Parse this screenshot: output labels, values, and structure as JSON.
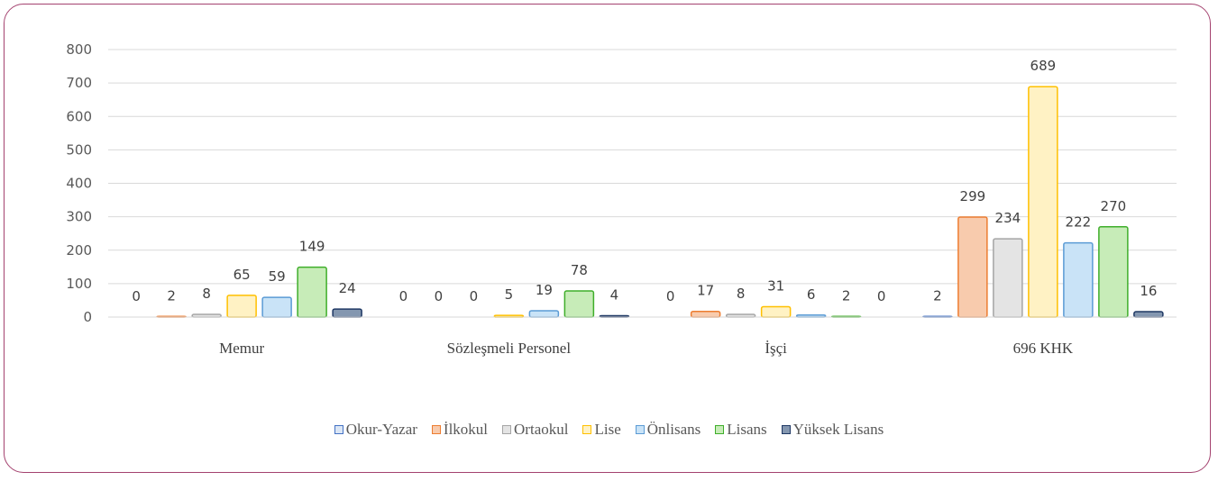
{
  "chart_data": {
    "type": "bar",
    "categories": [
      "Memur",
      "Sözleşmeli Personel",
      "İşçi",
      "696 KHK"
    ],
    "series": [
      {
        "name": "Okur-Yazar",
        "values": [
          0,
          0,
          0,
          2
        ],
        "fill": "#dbe6f5",
        "stroke": "#4472c4"
      },
      {
        "name": "İlkokul",
        "values": [
          2,
          0,
          17,
          299
        ],
        "fill": "#f8cbad",
        "stroke": "#ed7d31"
      },
      {
        "name": "Ortaokul",
        "values": [
          8,
          0,
          8,
          234
        ],
        "fill": "#e4e4e4",
        "stroke": "#a5a5a5"
      },
      {
        "name": "Lise",
        "values": [
          65,
          5,
          31,
          689
        ],
        "fill": "#fff2c4",
        "stroke": "#ffc000"
      },
      {
        "name": "Önlisans",
        "values": [
          59,
          19,
          6,
          222
        ],
        "fill": "#c9e3f7",
        "stroke": "#5b9bd5"
      },
      {
        "name": "Lisans",
        "values": [
          149,
          78,
          2,
          270
        ],
        "fill": "#c7ecb8",
        "stroke": "#3fae2a"
      },
      {
        "name": "Yüksek Lisans",
        "values": [
          24,
          4,
          0,
          16
        ],
        "fill": "#8497b0",
        "stroke": "#1f3864"
      }
    ],
    "yticks": [
      0,
      100,
      200,
      300,
      400,
      500,
      600,
      700,
      800
    ],
    "ylim": [
      0,
      800
    ],
    "grid": true,
    "legend_position": "bottom",
    "title": "",
    "xlabel": "",
    "ylabel": ""
  }
}
